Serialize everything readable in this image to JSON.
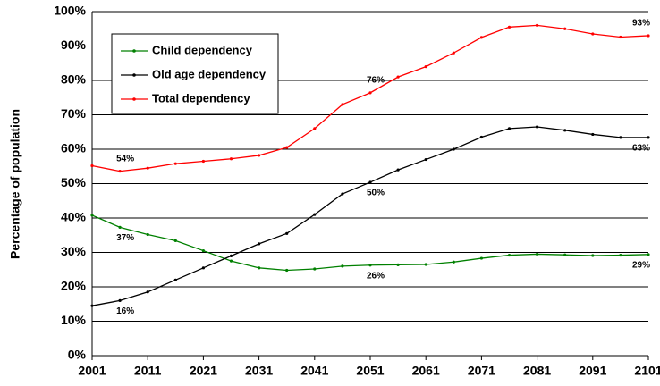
{
  "chart_data": {
    "type": "line",
    "y_axis_label": "Percentage of population",
    "x": [
      2001,
      2006,
      2011,
      2016,
      2021,
      2026,
      2031,
      2036,
      2041,
      2046,
      2051,
      2056,
      2061,
      2066,
      2071,
      2076,
      2081,
      2086,
      2091,
      2096,
      2101
    ],
    "series": [
      {
        "name": "Child dependency",
        "color": "#008000",
        "values": [
          40.8,
          37.3,
          35.2,
          33.4,
          30.5,
          27.5,
          25.5,
          24.8,
          25.2,
          26,
          26.3,
          26.4,
          26.5,
          27.2,
          28.3,
          29.2,
          29.5,
          29.3,
          29.1,
          29.2,
          29.4
        ],
        "value_labels": [
          null,
          "37%",
          null,
          null,
          null,
          null,
          null,
          null,
          null,
          null,
          "26%",
          null,
          null,
          null,
          null,
          null,
          null,
          null,
          null,
          null,
          "29%"
        ]
      },
      {
        "name": "Old age dependency",
        "color": "#000000",
        "values": [
          14.5,
          16,
          18.5,
          22,
          25.5,
          29,
          32.5,
          35.5,
          41,
          47,
          50.4,
          54,
          57,
          60,
          63.5,
          66,
          66.5,
          65.5,
          64.3,
          63.4,
          63.4
        ],
        "value_labels": [
          null,
          "16%",
          null,
          null,
          null,
          null,
          null,
          null,
          null,
          null,
          "50%",
          null,
          null,
          null,
          null,
          null,
          null,
          null,
          null,
          null,
          "63%"
        ]
      },
      {
        "name": "Total dependency",
        "color": "#ff0000",
        "values": [
          55.2,
          53.6,
          54.5,
          55.8,
          56.5,
          57.2,
          58.2,
          60.5,
          66,
          73,
          76.4,
          81,
          84,
          88,
          92.5,
          95.5,
          96,
          95,
          93.5,
          92.6,
          93
        ],
        "value_labels": [
          null,
          "54%",
          null,
          null,
          null,
          null,
          null,
          null,
          null,
          null,
          "76%",
          null,
          null,
          null,
          null,
          null,
          null,
          null,
          null,
          null,
          "93%"
        ]
      }
    ],
    "xlim": [
      2001,
      2101
    ],
    "xticks": [
      2001,
      2011,
      2021,
      2031,
      2041,
      2051,
      2061,
      2071,
      2081,
      2091,
      2101
    ],
    "ylim": [
      0,
      100
    ],
    "yticks": [
      {
        "value": 0,
        "label": "0%"
      },
      {
        "value": 10,
        "label": "10%"
      },
      {
        "value": 20,
        "label": "20%"
      },
      {
        "value": 30,
        "label": "30%"
      },
      {
        "value": 40,
        "label": "40%"
      },
      {
        "value": 50,
        "label": "50%"
      },
      {
        "value": 60,
        "label": "60%"
      },
      {
        "value": 70,
        "label": "70%"
      },
      {
        "value": 80,
        "label": "80%"
      },
      {
        "value": 90,
        "label": "90%"
      },
      {
        "value": 100,
        "label": "100%"
      }
    ],
    "grid": true
  }
}
